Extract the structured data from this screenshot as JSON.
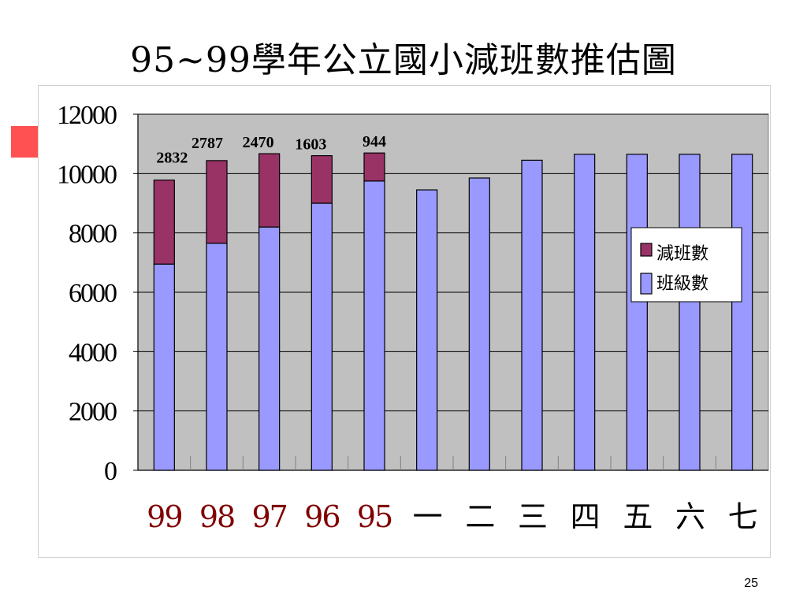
{
  "slide": {
    "title": "95~99學年公立國小減班數推估圖",
    "page_number": "25"
  },
  "colors": {
    "reduced": "#993366",
    "classes": "#9999ff",
    "plot_bg": "#c0c0c0",
    "past_label": "#800000",
    "future_label": "#000000"
  },
  "chart_data": {
    "type": "bar",
    "stacked": true,
    "categories": [
      "99",
      "98",
      "97",
      "96",
      "95",
      "一",
      "二",
      "三",
      "四",
      "五",
      "六",
      "七"
    ],
    "category_colors": [
      "past_label",
      "past_label",
      "past_label",
      "past_label",
      "past_label",
      "future_label",
      "future_label",
      "future_label",
      "future_label",
      "future_label",
      "future_label",
      "future_label"
    ],
    "series": [
      {
        "name": "班級數",
        "color_key": "classes",
        "values": [
          6950,
          7650,
          8200,
          9000,
          9750,
          9450,
          9850,
          10450,
          10650,
          10650,
          10650,
          10650
        ]
      },
      {
        "name": "減班數",
        "color_key": "reduced",
        "values": [
          2832,
          2787,
          2470,
          1603,
          944,
          0,
          0,
          0,
          0,
          0,
          0,
          0
        ]
      }
    ],
    "data_labels": [
      "2832",
      "2787",
      "2470",
      "1603",
      "944",
      "",
      "",
      "",
      "",
      "",
      "",
      ""
    ],
    "y_ticks": [
      "0",
      "2000",
      "4000",
      "6000",
      "8000",
      "10000",
      "12000"
    ],
    "y_tick_values": [
      0,
      2000,
      4000,
      6000,
      8000,
      10000,
      12000
    ],
    "ylim": [
      0,
      12000
    ],
    "grid": true,
    "legend": {
      "placement": "right",
      "entries": [
        "減班數",
        "班級數"
      ],
      "entry_color_keys": [
        "reduced",
        "classes"
      ]
    }
  }
}
